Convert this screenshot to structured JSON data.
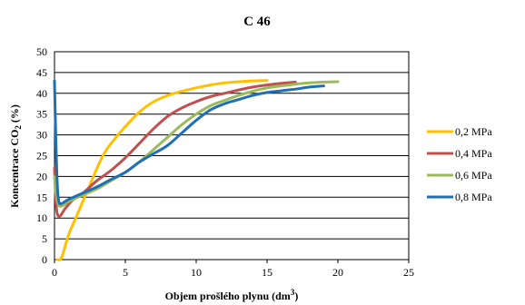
{
  "chart_data": {
    "type": "line",
    "title": "C 46",
    "xlabel": "Objem  prošlého plynu (dm",
    "xlabel_sup": "3",
    "xlabel_end": ")",
    "ylabel": "Koncentrace  CO",
    "ylabel_sub": "2",
    "ylabel_end": " (%)",
    "xlim": [
      0,
      25
    ],
    "ylim": [
      0,
      50
    ],
    "xticks": [
      "0",
      "5",
      "10",
      "15",
      "20",
      "25"
    ],
    "yticks": [
      "0",
      "5",
      "10",
      "15",
      "20",
      "25",
      "30",
      "35",
      "40",
      "45",
      "50"
    ],
    "grid": "horizontal",
    "legend_position": "right",
    "series": [
      {
        "name": "0,2 MPa",
        "color": "#FFC000",
        "points": [
          [
            0.2,
            0
          ],
          [
            0.5,
            0.5
          ],
          [
            1,
            6
          ],
          [
            1.5,
            10
          ],
          [
            2,
            14
          ],
          [
            2.5,
            18
          ],
          [
            3,
            22
          ],
          [
            3.5,
            25.5
          ],
          [
            4,
            28
          ],
          [
            5,
            32
          ],
          [
            6,
            35.5
          ],
          [
            7,
            38
          ],
          [
            8,
            39.5
          ],
          [
            9,
            40.5
          ],
          [
            10,
            41.3
          ],
          [
            11,
            42
          ],
          [
            12,
            42.5
          ],
          [
            13,
            42.8
          ],
          [
            14,
            43
          ],
          [
            15,
            43.1
          ]
        ]
      },
      {
        "name": "0,4 MPa",
        "color": "#C0504D",
        "points": [
          [
            0,
            22
          ],
          [
            0.1,
            14
          ],
          [
            0.2,
            11
          ],
          [
            0.4,
            10.5
          ],
          [
            0.8,
            12.5
          ],
          [
            1.5,
            15
          ],
          [
            2,
            16
          ],
          [
            2.5,
            17.5
          ],
          [
            3,
            19
          ],
          [
            4,
            21.5
          ],
          [
            5,
            24.5
          ],
          [
            6,
            28
          ],
          [
            7,
            31.5
          ],
          [
            8,
            34.5
          ],
          [
            9,
            36.5
          ],
          [
            10,
            38
          ],
          [
            11,
            39.2
          ],
          [
            12,
            40
          ],
          [
            13,
            40.8
          ],
          [
            14,
            41.5
          ],
          [
            15,
            42
          ],
          [
            16,
            42.4
          ],
          [
            17,
            42.7
          ]
        ]
      },
      {
        "name": "0,6 MPa",
        "color": "#9BBB59",
        "points": [
          [
            0,
            20
          ],
          [
            0.15,
            15
          ],
          [
            0.3,
            13
          ],
          [
            0.6,
            13
          ],
          [
            1,
            14
          ],
          [
            2,
            15.5
          ],
          [
            3,
            17
          ],
          [
            4,
            19
          ],
          [
            5,
            21
          ],
          [
            6,
            23.5
          ],
          [
            7,
            26.5
          ],
          [
            8,
            29.5
          ],
          [
            9,
            32.5
          ],
          [
            10,
            35
          ],
          [
            11,
            37
          ],
          [
            12,
            38.3
          ],
          [
            13,
            39.5
          ],
          [
            14,
            40.5
          ],
          [
            15,
            41.3
          ],
          [
            16,
            41.8
          ],
          [
            17,
            42.2
          ],
          [
            18,
            42.5
          ],
          [
            19,
            42.7
          ],
          [
            20,
            42.8
          ]
        ]
      },
      {
        "name": "0,8 MPa",
        "color": "#1F6FB5",
        "points": [
          [
            0,
            43
          ],
          [
            0.1,
            28
          ],
          [
            0.2,
            18
          ],
          [
            0.3,
            14
          ],
          [
            0.5,
            13.5
          ],
          [
            1,
            14.5
          ],
          [
            2,
            16
          ],
          [
            3,
            17.5
          ],
          [
            4,
            19.3
          ],
          [
            5,
            21
          ],
          [
            6,
            23.5
          ],
          [
            7,
            25.5
          ],
          [
            8,
            27.5
          ],
          [
            9,
            30.5
          ],
          [
            10,
            33.5
          ],
          [
            11,
            36
          ],
          [
            12,
            37.5
          ],
          [
            13,
            38.5
          ],
          [
            14,
            39.5
          ],
          [
            15,
            40.2
          ],
          [
            16,
            40.6
          ],
          [
            17,
            41
          ],
          [
            18,
            41.5
          ],
          [
            19,
            41.8
          ]
        ]
      }
    ]
  }
}
